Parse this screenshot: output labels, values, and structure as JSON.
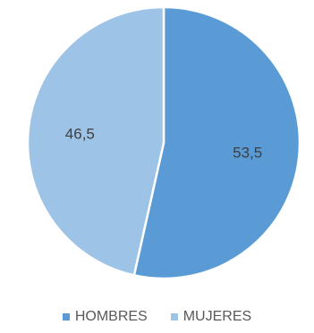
{
  "chart_data": {
    "type": "pie",
    "categories": [
      "HOMBRES",
      "MUJERES"
    ],
    "values": [
      53.5,
      46.5
    ],
    "value_labels": [
      "53,5",
      "46,5"
    ],
    "colors": [
      "#5b9bd5",
      "#9dc3e6"
    ],
    "start": "12 o'clock, clockwise",
    "legend_position": "bottom"
  }
}
